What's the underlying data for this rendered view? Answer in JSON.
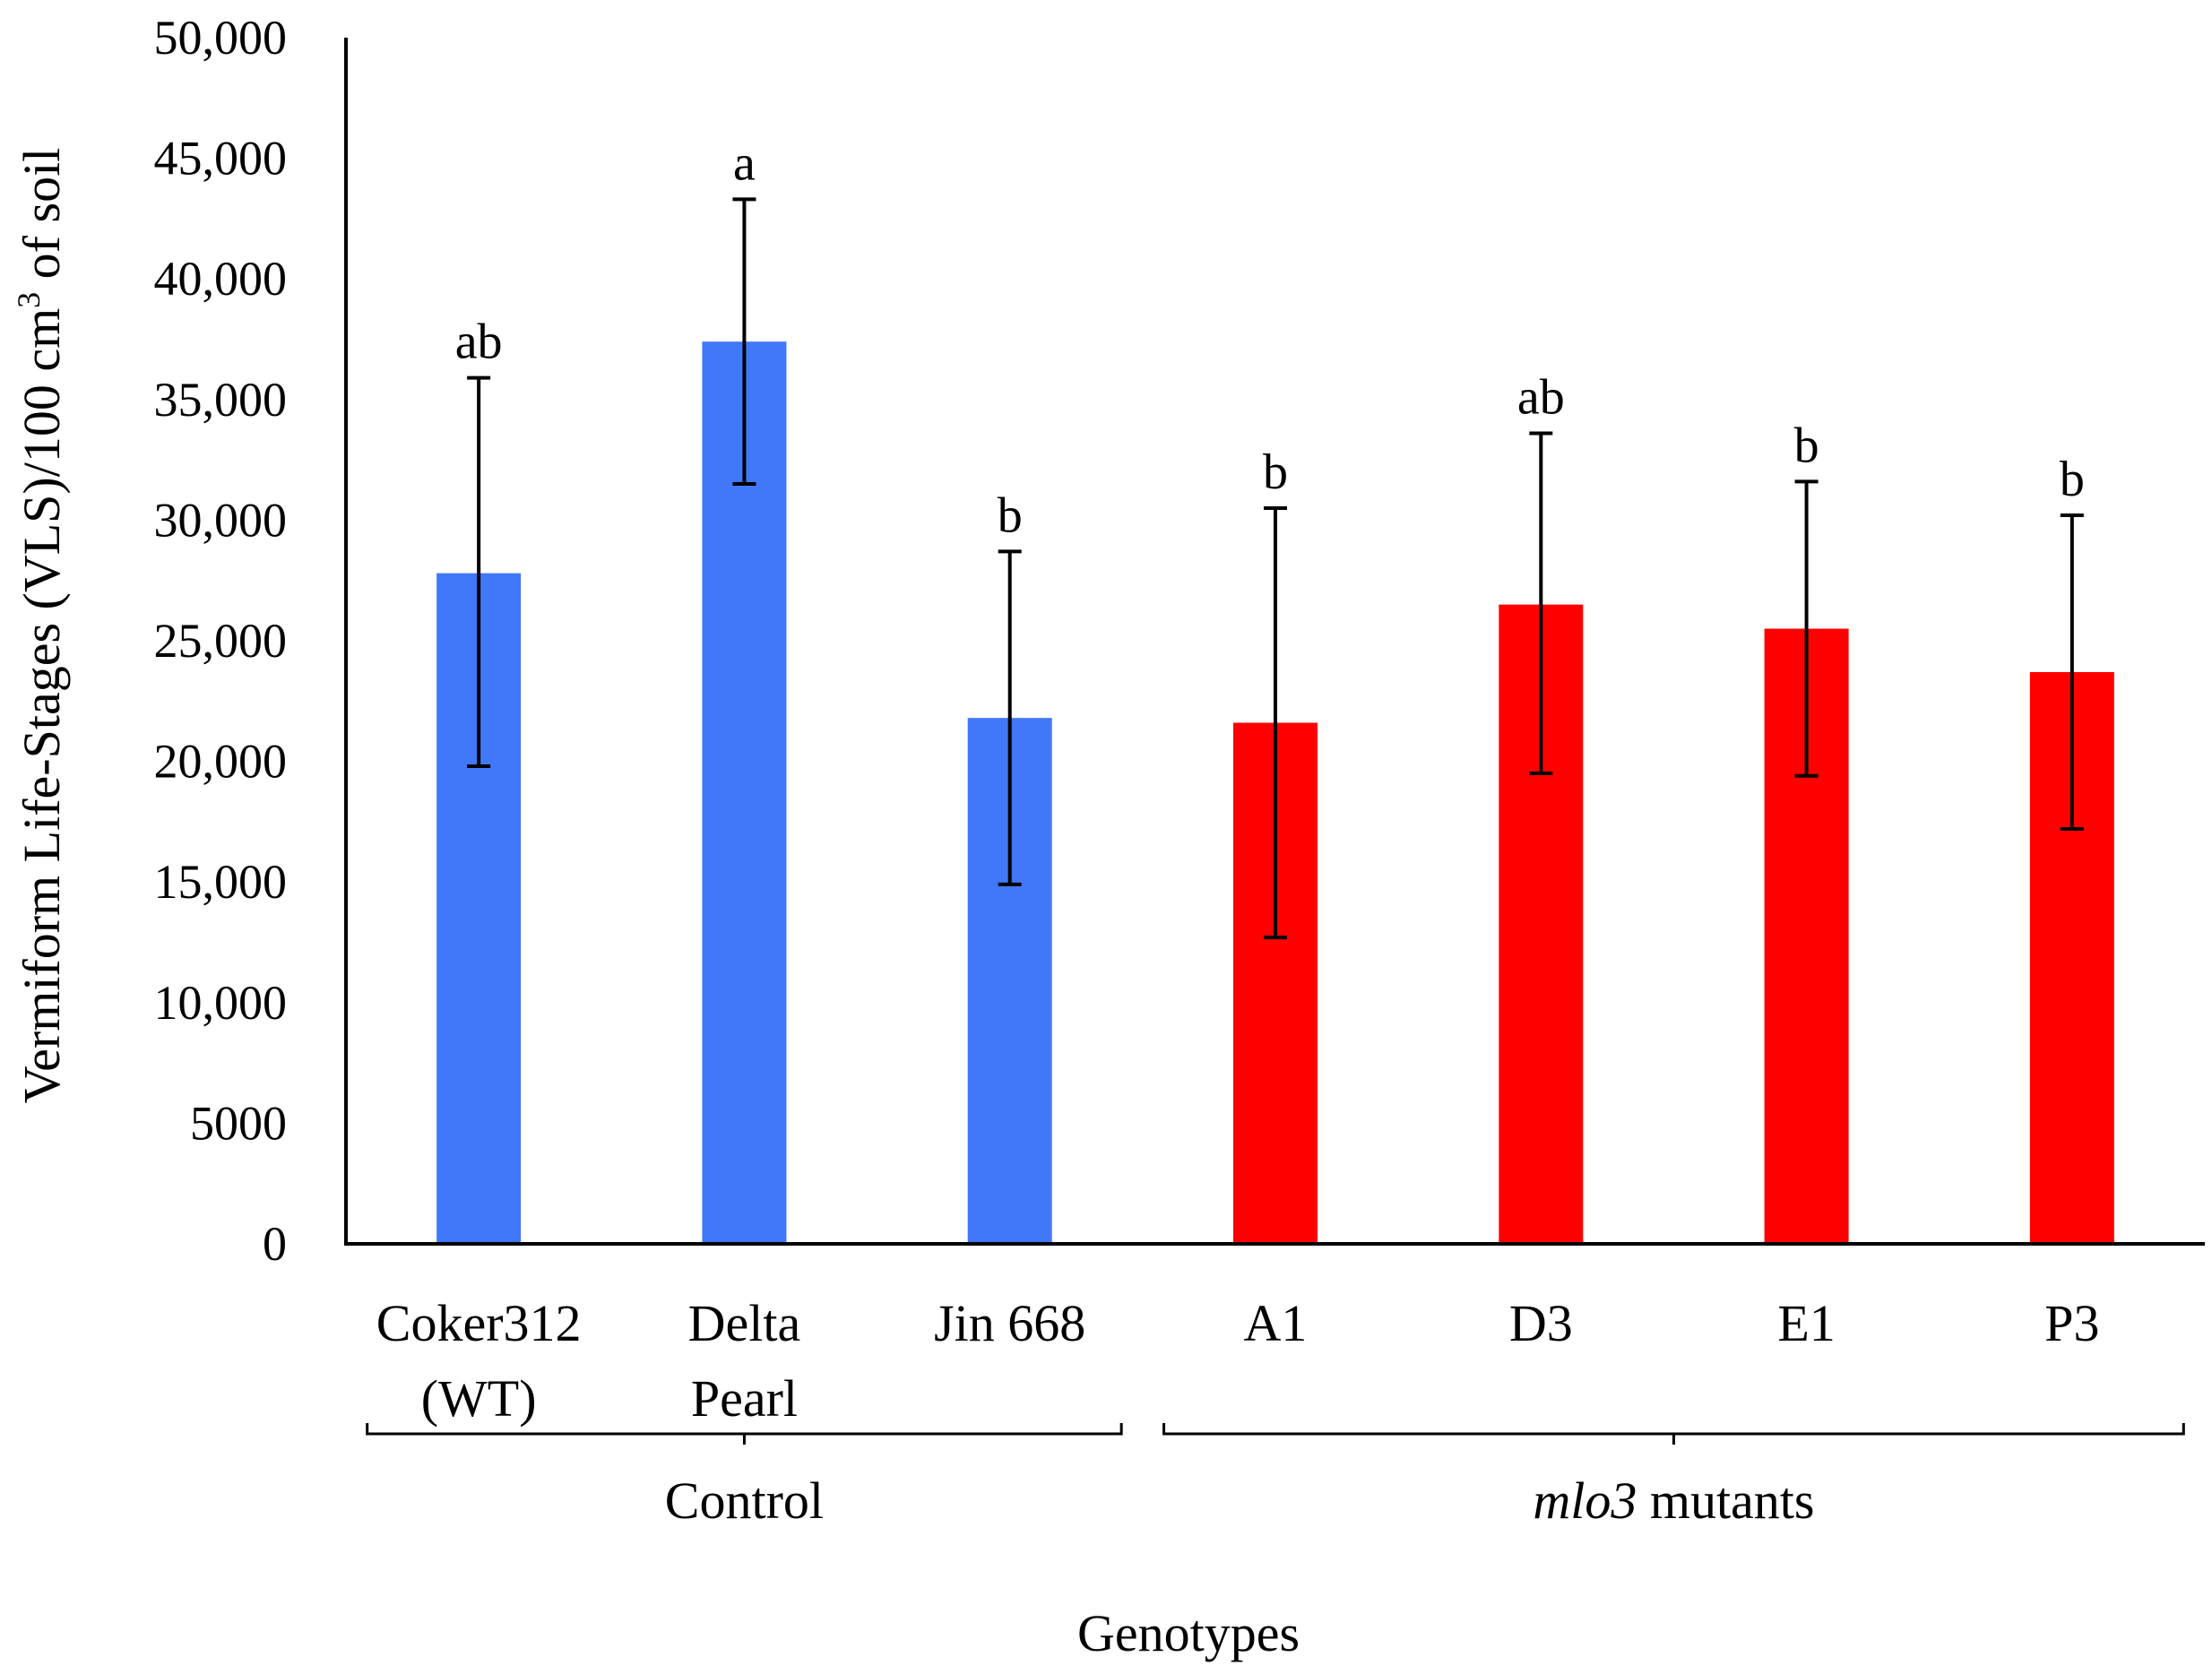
{
  "chart_data": {
    "type": "bar",
    "ylabel_main": "Vermiform Life-Stages (VLS)/100 cm",
    "ylabel_sup": "3",
    "ylabel_tail": " of soil",
    "xlabel": "Genotypes",
    "ylim": [
      0,
      50000
    ],
    "yticks": [
      {
        "value": 0,
        "label": "0"
      },
      {
        "value": 5000,
        "label": "5000"
      },
      {
        "value": 10000,
        "label": "10,000"
      },
      {
        "value": 15000,
        "label": "15,000"
      },
      {
        "value": 20000,
        "label": "20,000"
      },
      {
        "value": 25000,
        "label": "25,000"
      },
      {
        "value": 30000,
        "label": "30,000"
      },
      {
        "value": 35000,
        "label": "35,000"
      },
      {
        "value": 40000,
        "label": "40,000"
      },
      {
        "value": 45000,
        "label": "45,000"
      },
      {
        "value": 50000,
        "label": "50,000"
      }
    ],
    "categories": [
      {
        "line1": "Coker312",
        "line2": "(WT)",
        "value": 27800,
        "err_low": 19800,
        "err_high": 35900,
        "sig": "ab",
        "group": "control"
      },
      {
        "line1": "Delta",
        "line2": "Pearl",
        "value": 37400,
        "err_low": 31500,
        "err_high": 43300,
        "sig": "a",
        "group": "control"
      },
      {
        "line1": "Jin 668",
        "line2": "",
        "value": 21800,
        "err_low": 14900,
        "err_high": 28700,
        "sig": "b",
        "group": "control"
      },
      {
        "line1": "A1",
        "line2": "",
        "value": 21600,
        "err_low": 12700,
        "err_high": 30500,
        "sig": "b",
        "group": "mutant"
      },
      {
        "line1": "D3",
        "line2": "",
        "value": 26500,
        "err_low": 19500,
        "err_high": 33600,
        "sig": "ab",
        "group": "mutant"
      },
      {
        "line1": "E1",
        "line2": "",
        "value": 25500,
        "err_low": 19400,
        "err_high": 31600,
        "sig": "b",
        "group": "mutant"
      },
      {
        "line1": "P3",
        "line2": "",
        "value": 23700,
        "err_low": 17200,
        "err_high": 30200,
        "sig": "b",
        "group": "mutant"
      }
    ],
    "groups": [
      {
        "key": "control",
        "label_main": "Control",
        "label_italic": ""
      },
      {
        "key": "mutant",
        "label_main": " mutants",
        "label_italic": "mlo3"
      }
    ],
    "colors": {
      "control": "#4178F9",
      "mutant": "#FF0000"
    }
  }
}
